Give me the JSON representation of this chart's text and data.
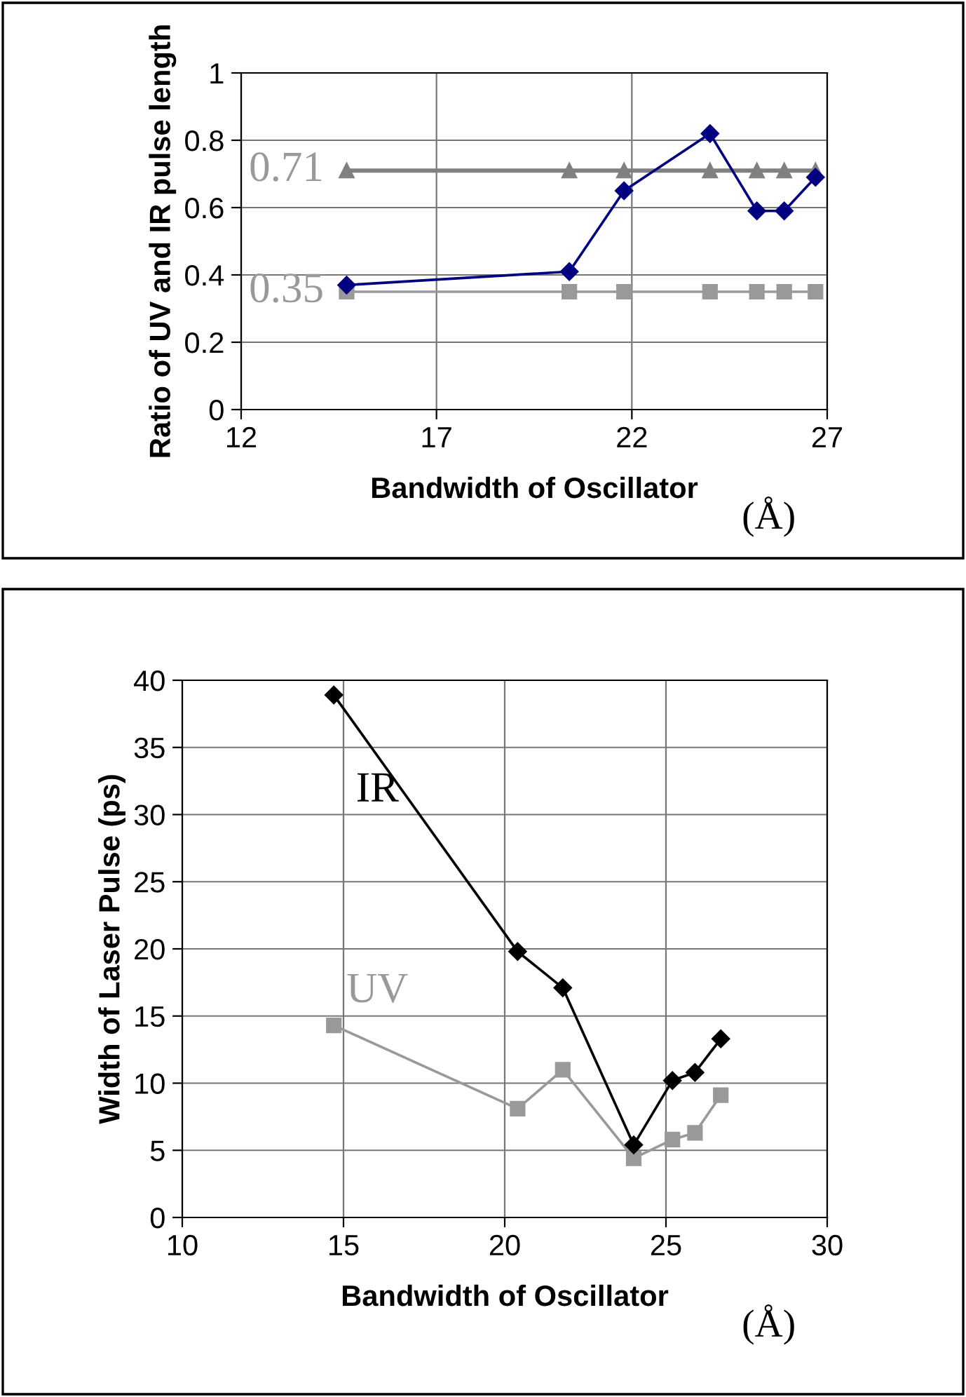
{
  "chart_data": [
    {
      "type": "line",
      "xlabel": "Bandwidth of Oscillator",
      "ylabel": "Ratio of UV and IR pulse length",
      "xlim": [
        12,
        27
      ],
      "xticks": [
        12,
        17,
        22,
        27
      ],
      "ylim": [
        0,
        1
      ],
      "yticks": [
        0,
        0.2,
        0.4,
        0.6,
        0.8,
        1
      ],
      "grid": true,
      "legend": false,
      "x": [
        14.7,
        20.4,
        21.8,
        24.0,
        25.2,
        25.9,
        26.7
      ],
      "series": [
        {
          "color": "#000080",
          "marker": "diamond",
          "values": [
            0.37,
            0.41,
            0.65,
            0.82,
            0.59,
            0.59,
            0.69
          ]
        },
        {
          "color": "#808080",
          "marker": "triangle",
          "values": [
            0.71,
            0.71,
            0.71,
            0.71,
            0.71,
            0.71,
            0.71
          ]
        },
        {
          "color": "#999999",
          "marker": "square",
          "values": [
            0.35,
            0.35,
            0.35,
            0.35,
            0.35,
            0.35,
            0.35
          ]
        }
      ],
      "annotations": [
        "0.71",
        "0.35",
        "(Å)"
      ]
    },
    {
      "type": "line",
      "xlabel": "Bandwidth of Oscillator",
      "ylabel": "Width of Laser Pulse (ps)",
      "xlim": [
        10,
        30
      ],
      "xticks": [
        10,
        15,
        20,
        25,
        30
      ],
      "ylim": [
        0,
        40
      ],
      "yticks": [
        0,
        5,
        10,
        15,
        20,
        25,
        30,
        35,
        40
      ],
      "grid": true,
      "legend": false,
      "x": [
        14.7,
        20.4,
        21.8,
        24.0,
        25.2,
        25.9,
        26.7
      ],
      "series": [
        {
          "name": "IR",
          "color": "#000000",
          "marker": "diamond",
          "values": [
            38.9,
            19.8,
            17.1,
            5.4,
            10.2,
            10.8,
            13.3
          ]
        },
        {
          "name": "UV",
          "color": "#999999",
          "marker": "square",
          "values": [
            14.3,
            8.1,
            11.0,
            4.4,
            5.8,
            6.3,
            9.1
          ]
        }
      ],
      "annotations": [
        "(Å)"
      ]
    }
  ]
}
